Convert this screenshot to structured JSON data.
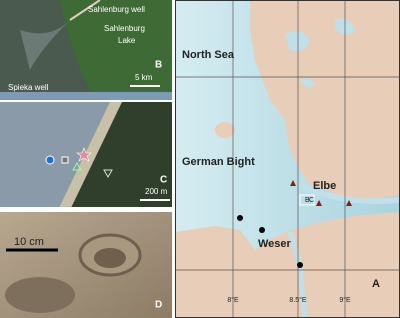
{
  "panel_b": {
    "letter": "B",
    "labels": [
      "Sahlenburg well",
      "Sahlenburg",
      "Lake",
      "Spieka well"
    ],
    "scale": "5 km"
  },
  "panel_c": {
    "letter": "C",
    "scale": "200 m"
  },
  "panel_d": {
    "letter": "D",
    "scale": "10 cm"
  },
  "panel_a": {
    "letter": "A",
    "places": [
      "North Sea",
      "German Bight",
      "Elbe",
      "Weser"
    ],
    "longitudes": [
      "8°E",
      "8.5°E",
      "9°E"
    ],
    "inset_labels": [
      "B",
      "C"
    ]
  }
}
